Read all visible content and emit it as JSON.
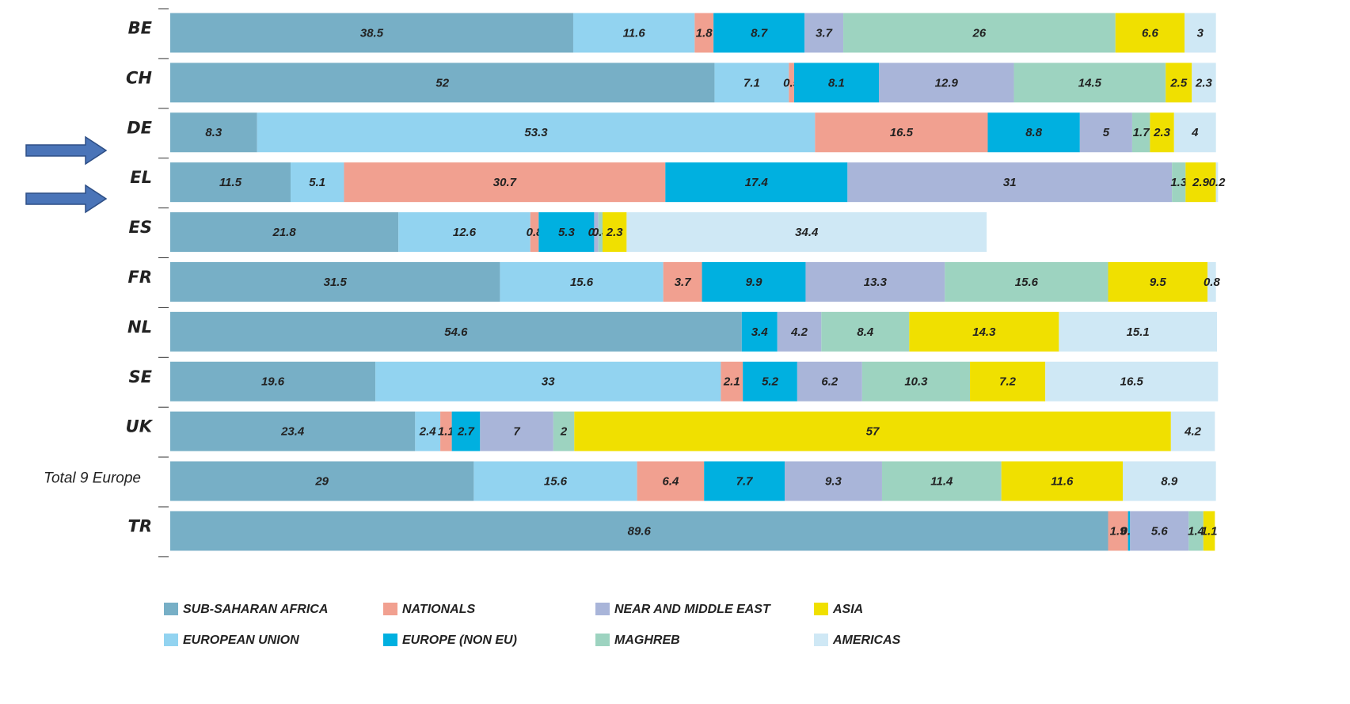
{
  "chart_data": {
    "type": "stacked-barh",
    "categories": [
      "BE",
      "CH",
      "DE",
      "EL",
      "ES",
      "FR",
      "NL",
      "SE",
      "UK",
      "Total 9 Europe",
      "TR"
    ],
    "xlim": [
      0,
      100
    ],
    "series": [
      {
        "name": "SUB-SAHARAN AFRICA",
        "color": "#77afc6",
        "values": [
          38.5,
          52.0,
          8.3,
          11.5,
          21.8,
          31.5,
          54.6,
          19.6,
          23.4,
          29.0,
          89.6
        ]
      },
      {
        "name": "EUROPEAN UNION",
        "color": "#92d3f0",
        "values": [
          11.6,
          7.1,
          53.3,
          5.1,
          12.6,
          15.6,
          null,
          33.0,
          2.4,
          15.6,
          null
        ]
      },
      {
        "name": "NATIONALS",
        "color": "#f1a090",
        "values": [
          1.8,
          0.5,
          16.5,
          30.7,
          0.8,
          3.7,
          null,
          2.1,
          1.1,
          6.4,
          1.9
        ]
      },
      {
        "name": "EUROPE (NON EU)",
        "color": "#00b0e0",
        "values": [
          8.7,
          8.1,
          8.8,
          17.4,
          5.3,
          9.9,
          3.4,
          5.2,
          2.7,
          7.7,
          0.2
        ]
      },
      {
        "name": "NEAR AND MIDDLE EAST",
        "color": "#a9b5d9",
        "values": [
          3.7,
          12.9,
          5.0,
          31.0,
          0.4,
          13.3,
          4.2,
          6.2,
          7.0,
          9.3,
          5.6
        ]
      },
      {
        "name": "MAGHREB",
        "color": "#9dd3c0",
        "values": [
          26.0,
          14.5,
          1.7,
          1.3,
          0.4,
          15.6,
          8.4,
          10.3,
          2.0,
          11.4,
          1.4
        ]
      },
      {
        "name": "ASIA",
        "color": "#f0e000",
        "values": [
          6.6,
          2.5,
          2.3,
          2.9,
          2.3,
          9.5,
          14.3,
          7.2,
          57.0,
          11.6,
          1.1
        ]
      },
      {
        "name": "AMERICAS",
        "color": "#cfe8f5",
        "values": [
          3.0,
          2.3,
          4.0,
          0.2,
          34.4,
          0.8,
          15.1,
          16.5,
          4.2,
          8.9,
          null
        ]
      }
    ]
  }
}
